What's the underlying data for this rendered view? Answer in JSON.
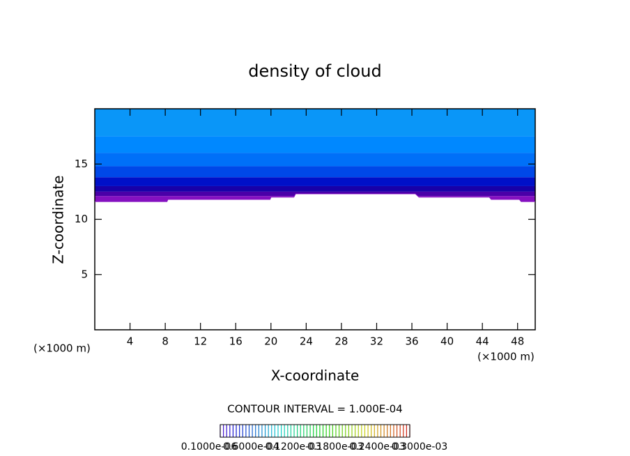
{
  "chart_data": {
    "type": "contour",
    "title": "density of cloud",
    "x_label": "X-coordinate",
    "y_label": "Z-coordinate",
    "x_unit": "(×1000 m)",
    "x_unit_right": "(×1000 m)",
    "xlim": [
      0,
      50
    ],
    "ylim": [
      0,
      20
    ],
    "xticks": [
      4,
      8,
      12,
      16,
      20,
      24,
      28,
      32,
      36,
      40,
      44,
      48
    ],
    "yticks": [
      5,
      10,
      15
    ],
    "cloud_base": {
      "x": [
        0,
        8.2,
        8.3,
        19.9,
        20,
        22.6,
        22.8,
        36.4,
        36.8,
        44.8,
        45,
        48.2,
        48.4,
        50
      ],
      "z": [
        11.6,
        11.6,
        11.8,
        11.8,
        12.0,
        12.0,
        12.3,
        12.3,
        12.0,
        12.0,
        11.8,
        11.8,
        11.6,
        11.6
      ]
    },
    "levels": {
      "z": [
        20,
        17.5,
        16,
        14.8,
        13.8,
        13.0,
        12.5,
        12.1
      ],
      "colors": [
        "#0a96f8",
        "#0088ff",
        "#0070f8",
        "#0048e8",
        "#0010c8",
        "#1800a8",
        "#4a00a8",
        "#8410c0"
      ]
    },
    "contour_interval": "CONTOUR INTERVAL = 1.000E-04",
    "colorbar_labels": [
      "0.1000e-06",
      "0.6000e-04",
      "0.1200e-03",
      "0.1800e-03",
      "0.2400e-03",
      "0.3000e-03"
    ]
  }
}
